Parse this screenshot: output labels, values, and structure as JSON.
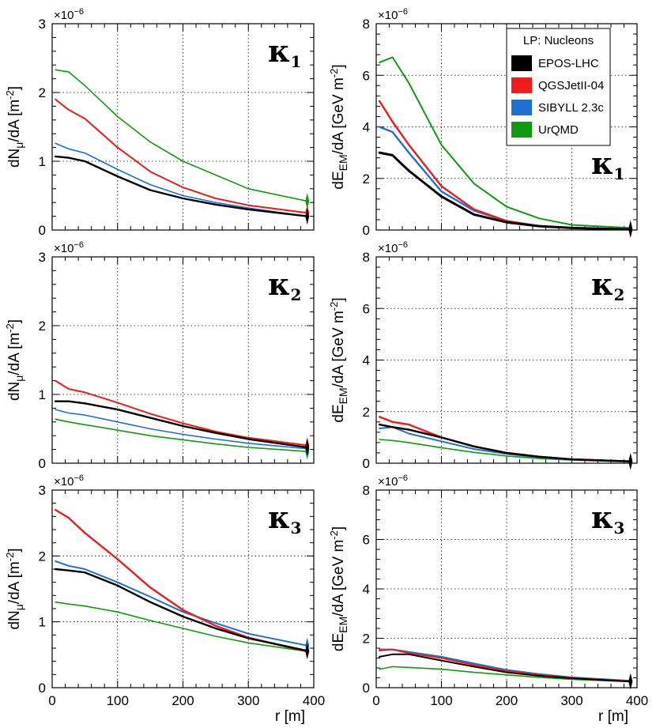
{
  "figure": {
    "x_label": "r [m]",
    "x_ticks": [
      "0",
      "100",
      "200",
      "300",
      "400"
    ],
    "exponent": "×10",
    "exponent_power": "−6"
  },
  "legend": {
    "title": "LP:  Nucleons",
    "entries": [
      {
        "name": "EPOS-LHC",
        "color": "#000000"
      },
      {
        "name": "QGSJetII-04",
        "color": "#ee1c1c"
      },
      {
        "name": "SIBYLL 2.3c",
        "color": "#1f6fd0"
      },
      {
        "name": "UrQMD",
        "color": "#119911"
      }
    ]
  },
  "chart_data": [
    {
      "type": "line",
      "panel": "muon-kappa1",
      "title": "κ",
      "title_sub": "1",
      "ylabel": "dN_μ/dA [m^-2]",
      "ylim": [
        0,
        3
      ],
      "yticks": [
        "0",
        "1",
        "2",
        "3"
      ],
      "xlim": [
        0,
        400
      ],
      "x": [
        5,
        25,
        50,
        100,
        150,
        200,
        250,
        300,
        390
      ],
      "series": [
        {
          "name": "EPOS-LHC",
          "values": [
            1.07,
            1.05,
            1.0,
            0.78,
            0.58,
            0.46,
            0.37,
            0.3,
            0.2
          ],
          "width": 1.2
        },
        {
          "name": "QGSJetII-04",
          "values": [
            1.9,
            1.75,
            1.62,
            1.2,
            0.85,
            0.62,
            0.46,
            0.36,
            0.25
          ],
          "width": 1.0
        },
        {
          "name": "SIBYLL 2.3c",
          "values": [
            1.26,
            1.18,
            1.12,
            0.88,
            0.66,
            0.5,
            0.4,
            0.32,
            0.2
          ],
          "width": 0.8
        },
        {
          "name": "UrQMD",
          "values": [
            2.33,
            2.3,
            2.1,
            1.65,
            1.28,
            1.0,
            0.8,
            0.6,
            0.42
          ],
          "width": 0.8
        }
      ]
    },
    {
      "type": "line",
      "panel": "em-kappa1",
      "title": "κ",
      "title_sub": "1",
      "ylabel": "dE_EM/dA [GeV m^-2]",
      "ylim": [
        0,
        8
      ],
      "yticks": [
        "0",
        "2",
        "4",
        "6",
        "8"
      ],
      "xlim": [
        0,
        400
      ],
      "x": [
        5,
        25,
        50,
        100,
        150,
        200,
        250,
        300,
        390
      ],
      "series": [
        {
          "name": "EPOS-LHC",
          "values": [
            3.0,
            2.9,
            2.3,
            1.3,
            0.6,
            0.3,
            0.15,
            0.08,
            0.02
          ],
          "width": 1.5
        },
        {
          "name": "QGSJetII-04",
          "values": [
            5.0,
            4.2,
            3.3,
            1.7,
            0.8,
            0.35,
            0.15,
            0.08,
            0.02
          ],
          "width": 1.2
        },
        {
          "name": "SIBYLL 2.3c",
          "values": [
            4.0,
            3.8,
            3.0,
            1.5,
            0.75,
            0.35,
            0.15,
            0.08,
            0.02
          ],
          "width": 1.2
        },
        {
          "name": "UrQMD",
          "values": [
            6.5,
            6.7,
            5.7,
            3.3,
            1.8,
            0.9,
            0.45,
            0.2,
            0.08
          ],
          "width": 1.0
        }
      ]
    },
    {
      "type": "line",
      "panel": "muon-kappa2",
      "title": "κ",
      "title_sub": "2",
      "ylabel": "dN_μ/dA [m^-2]",
      "ylim": [
        0,
        3
      ],
      "yticks": [
        "0",
        "1",
        "2",
        "3"
      ],
      "xlim": [
        0,
        400
      ],
      "x": [
        5,
        25,
        50,
        100,
        150,
        200,
        250,
        300,
        390
      ],
      "series": [
        {
          "name": "EPOS-LHC",
          "values": [
            0.9,
            0.9,
            0.87,
            0.78,
            0.66,
            0.54,
            0.44,
            0.35,
            0.23
          ],
          "width": 1.2
        },
        {
          "name": "QGSJetII-04",
          "values": [
            1.2,
            1.08,
            1.03,
            0.88,
            0.72,
            0.58,
            0.46,
            0.37,
            0.26
          ],
          "width": 1.0
        },
        {
          "name": "SIBYLL 2.3c",
          "values": [
            0.78,
            0.73,
            0.7,
            0.6,
            0.5,
            0.42,
            0.35,
            0.29,
            0.21
          ],
          "width": 0.8
        },
        {
          "name": "UrQMD",
          "values": [
            0.64,
            0.6,
            0.56,
            0.48,
            0.4,
            0.34,
            0.28,
            0.23,
            0.17
          ],
          "width": 0.8
        }
      ]
    },
    {
      "type": "line",
      "panel": "em-kappa2",
      "title": "κ",
      "title_sub": "2",
      "ylabel": "dE_EM/dA [GeV m^-2]",
      "ylim": [
        0,
        8
      ],
      "yticks": [
        "0",
        "2",
        "4",
        "6",
        "8"
      ],
      "xlim": [
        0,
        400
      ],
      "x": [
        5,
        25,
        50,
        100,
        150,
        200,
        250,
        300,
        390
      ],
      "series": [
        {
          "name": "EPOS-LHC",
          "values": [
            1.5,
            1.4,
            1.3,
            1.0,
            0.65,
            0.4,
            0.25,
            0.15,
            0.07
          ],
          "width": 1.2
        },
        {
          "name": "QGSJetII-04",
          "values": [
            1.8,
            1.6,
            1.5,
            1.0,
            0.65,
            0.4,
            0.25,
            0.15,
            0.07
          ],
          "width": 1.2
        },
        {
          "name": "SIBYLL 2.3c",
          "values": [
            1.35,
            1.4,
            1.15,
            0.85,
            0.55,
            0.36,
            0.22,
            0.14,
            0.06
          ],
          "width": 1.0
        },
        {
          "name": "UrQMD",
          "values": [
            0.92,
            0.88,
            0.8,
            0.6,
            0.42,
            0.28,
            0.18,
            0.12,
            0.05
          ],
          "width": 0.8
        }
      ]
    },
    {
      "type": "line",
      "panel": "muon-kappa3",
      "title": "κ",
      "title_sub": "3",
      "ylabel": "dN_μ/dA [m^-2]",
      "ylim": [
        0,
        3
      ],
      "yticks": [
        "0",
        "1",
        "2",
        "3"
      ],
      "xlim": [
        0,
        400
      ],
      "x": [
        5,
        25,
        50,
        100,
        150,
        200,
        250,
        300,
        390
      ],
      "series": [
        {
          "name": "EPOS-LHC",
          "values": [
            1.8,
            1.78,
            1.75,
            1.55,
            1.3,
            1.08,
            0.9,
            0.75,
            0.56
          ],
          "width": 1.2
        },
        {
          "name": "QGSJetII-04",
          "values": [
            2.7,
            2.58,
            2.35,
            1.95,
            1.52,
            1.18,
            0.94,
            0.76,
            0.55
          ],
          "width": 1.2
        },
        {
          "name": "SIBYLL 2.3c",
          "values": [
            1.92,
            1.85,
            1.8,
            1.6,
            1.38,
            1.15,
            0.98,
            0.82,
            0.64
          ],
          "width": 1.0
        },
        {
          "name": "UrQMD",
          "values": [
            1.3,
            1.27,
            1.24,
            1.15,
            1.02,
            0.9,
            0.78,
            0.68,
            0.55
          ],
          "width": 0.8
        }
      ]
    },
    {
      "type": "line",
      "panel": "em-kappa3",
      "title": "κ",
      "title_sub": "3",
      "ylabel": "dE_EM/dA [GeV m^-2]",
      "ylim": [
        0,
        8
      ],
      "yticks": [
        "0",
        "2",
        "4",
        "6",
        "8"
      ],
      "xlim": [
        0,
        400
      ],
      "x": [
        5,
        25,
        50,
        100,
        150,
        200,
        250,
        300,
        390
      ],
      "series": [
        {
          "name": "EPOS-LHC",
          "values": [
            1.25,
            1.35,
            1.35,
            1.1,
            0.85,
            0.62,
            0.48,
            0.38,
            0.25
          ],
          "width": 1.0
        },
        {
          "name": "QGSJetII-04",
          "values": [
            1.55,
            1.55,
            1.4,
            1.2,
            0.92,
            0.68,
            0.52,
            0.4,
            0.26
          ],
          "width": 1.0
        },
        {
          "name": "SIBYLL 2.3c",
          "values": [
            1.5,
            1.55,
            1.45,
            1.25,
            0.98,
            0.72,
            0.55,
            0.42,
            0.28
          ],
          "width": 1.0
        },
        {
          "name": "UrQMD",
          "values": [
            0.75,
            0.85,
            0.82,
            0.75,
            0.62,
            0.52,
            0.42,
            0.34,
            0.24
          ],
          "width": 0.8
        }
      ]
    }
  ]
}
